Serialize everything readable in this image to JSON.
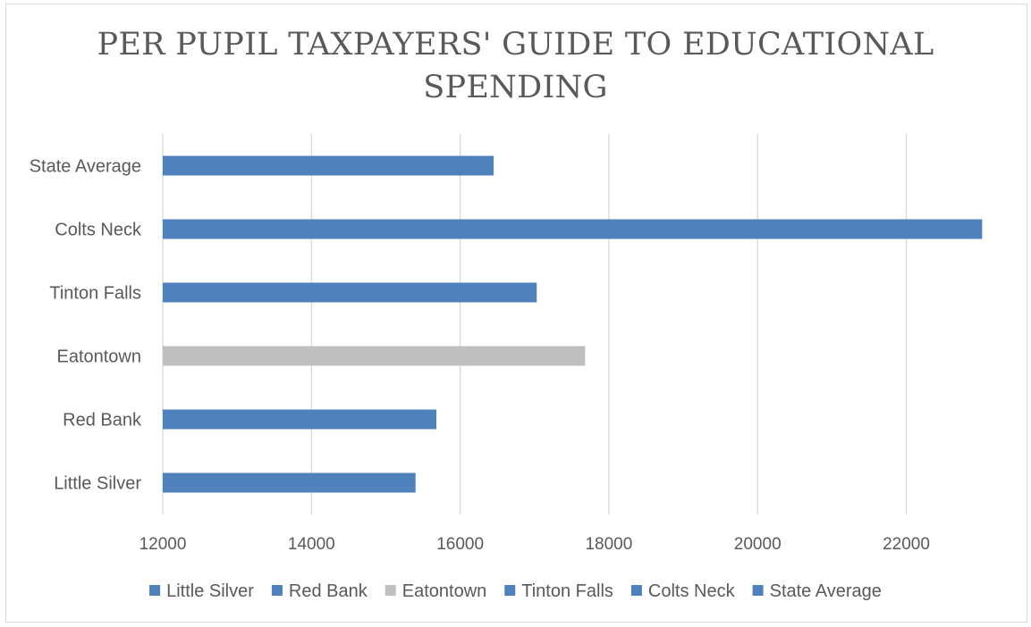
{
  "chart_data": {
    "type": "bar",
    "orientation": "horizontal",
    "title": "PER PUPIL TAXPAYERS' GUIDE TO EDUCATIONAL SPENDING",
    "categories": [
      "Little Silver",
      "Red Bank",
      "Eatontown",
      "Tinton Falls",
      "Colts Neck",
      "State Average"
    ],
    "values": [
      15400,
      15680,
      17680,
      17030,
      23020,
      16450
    ],
    "colors": [
      "#4f81bd",
      "#4f81bd",
      "#bfbfbf",
      "#4f81bd",
      "#4f81bd",
      "#4f81bd"
    ],
    "xlim": [
      12000,
      23100
    ],
    "xticks": [
      12000,
      14000,
      16000,
      18000,
      20000,
      22000
    ],
    "xlabel": "",
    "ylabel": "",
    "grid": true,
    "legend_placement": "bottom",
    "legend": [
      {
        "name": "Little Silver",
        "color": "#4f81bd"
      },
      {
        "name": "Red Bank",
        "color": "#4f81bd"
      },
      {
        "name": "Eatontown",
        "color": "#bfbfbf"
      },
      {
        "name": "Tinton Falls",
        "color": "#4f81bd"
      },
      {
        "name": "Colts Neck",
        "color": "#4f81bd"
      },
      {
        "name": "State Average",
        "color": "#4f81bd"
      }
    ]
  }
}
